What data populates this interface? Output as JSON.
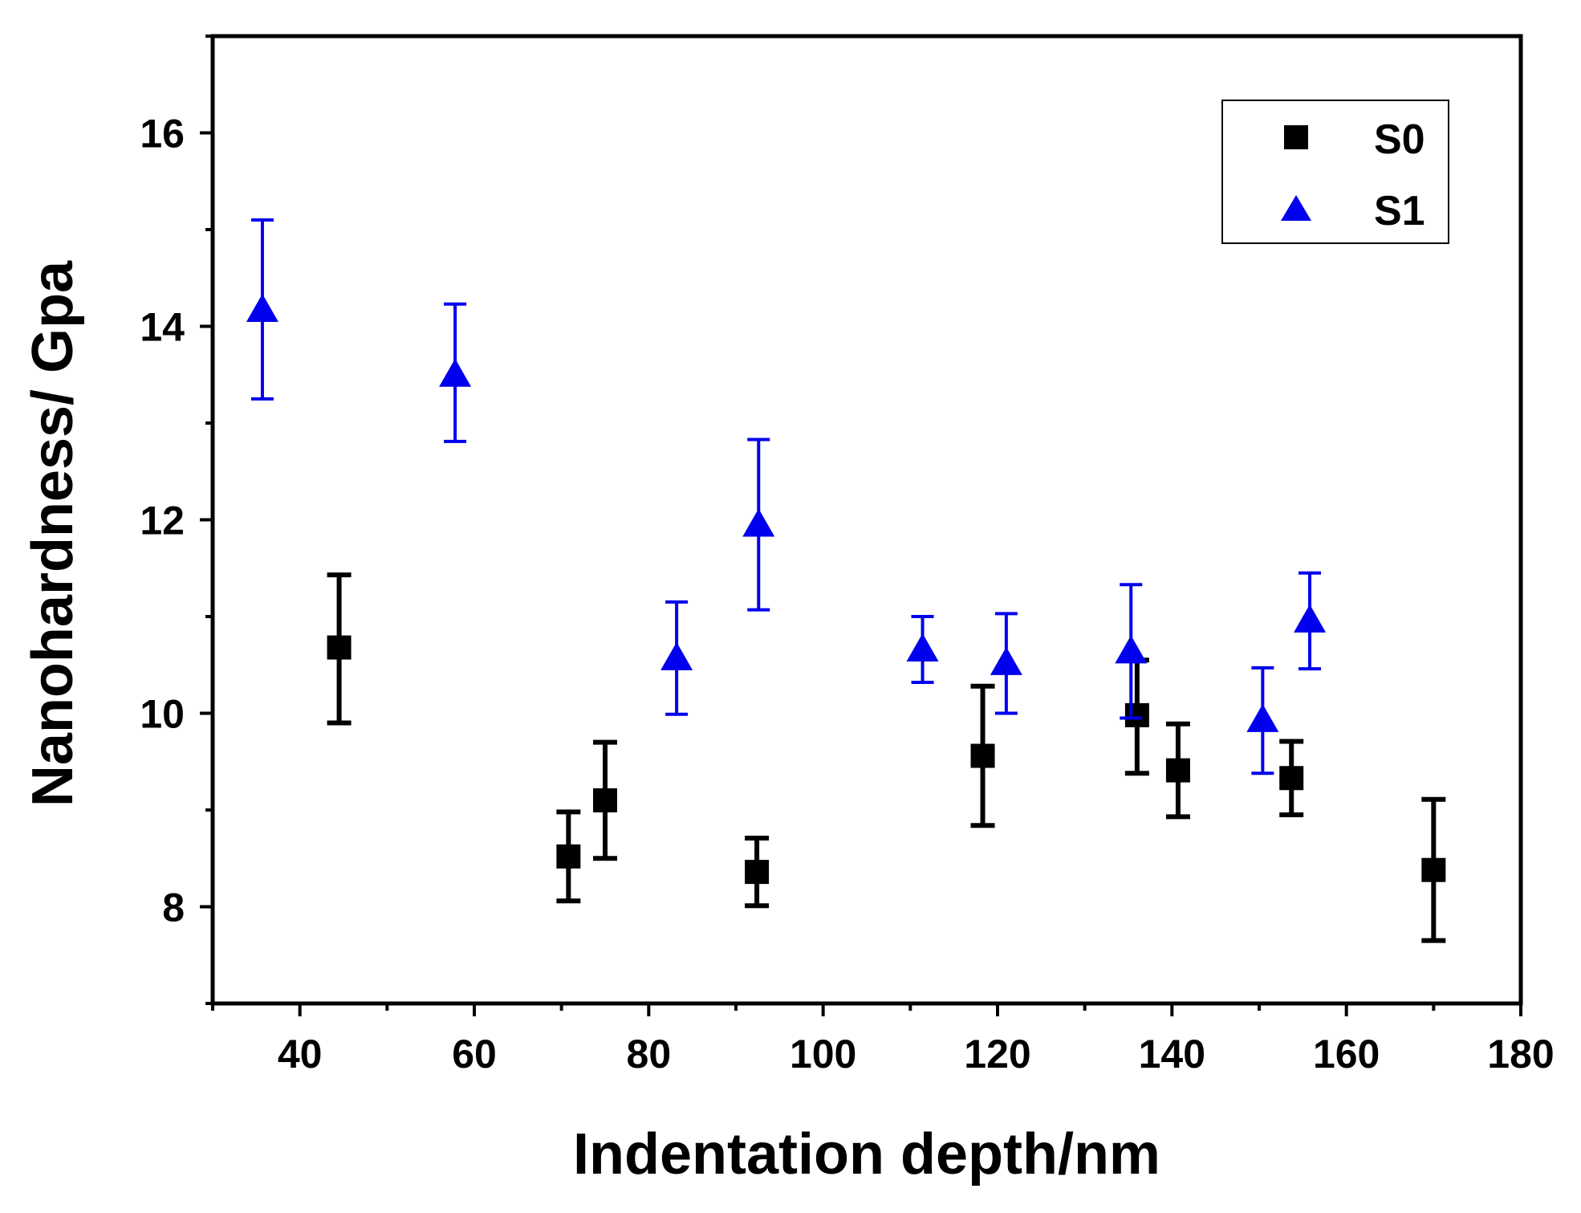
{
  "chart_data": {
    "type": "scatter",
    "title": "",
    "xlabel": "Indentation depth/nm",
    "ylabel": "Nanohardness/ Gpa",
    "xlim": [
      30,
      180
    ],
    "ylim": [
      7,
      17
    ],
    "x_major_ticks": [
      40,
      60,
      80,
      100,
      120,
      140,
      160,
      180
    ],
    "x_minor_ticks": [
      30,
      50,
      70,
      90,
      110,
      130,
      150,
      170
    ],
    "y_major_ticks": [
      8,
      10,
      12,
      14,
      16
    ],
    "y_minor_ticks": [
      7,
      9,
      11,
      13,
      15,
      17
    ],
    "grid": false,
    "legend_position": "top-right",
    "series": [
      {
        "name": "S0",
        "marker": "square",
        "color": "#000000",
        "points": [
          {
            "x": 44.5,
            "y": 10.68,
            "err_low": 9.9,
            "err_high": 11.43
          },
          {
            "x": 70.8,
            "y": 8.52,
            "err_low": 8.06,
            "err_high": 8.98
          },
          {
            "x": 75.0,
            "y": 9.1,
            "err_low": 8.5,
            "err_high": 9.7
          },
          {
            "x": 92.4,
            "y": 8.36,
            "err_low": 8.01,
            "err_high": 8.71
          },
          {
            "x": 118.3,
            "y": 9.56,
            "err_low": 8.84,
            "err_high": 10.28
          },
          {
            "x": 136.0,
            "y": 9.98,
            "err_low": 9.38,
            "err_high": 10.55
          },
          {
            "x": 140.7,
            "y": 9.41,
            "err_low": 8.93,
            "err_high": 9.89
          },
          {
            "x": 153.7,
            "y": 9.33,
            "err_low": 8.95,
            "err_high": 9.71
          },
          {
            "x": 170.0,
            "y": 8.38,
            "err_low": 7.65,
            "err_high": 9.11
          }
        ]
      },
      {
        "name": "S1",
        "marker": "triangle",
        "color": "#0000ee",
        "points": [
          {
            "x": 35.7,
            "y": 14.17,
            "err_low": 13.25,
            "err_high": 15.1
          },
          {
            "x": 57.8,
            "y": 13.5,
            "err_low": 12.81,
            "err_high": 14.23
          },
          {
            "x": 83.2,
            "y": 10.57,
            "err_low": 9.99,
            "err_high": 11.15
          },
          {
            "x": 92.6,
            "y": 11.95,
            "err_low": 11.07,
            "err_high": 12.83
          },
          {
            "x": 111.4,
            "y": 10.66,
            "err_low": 10.32,
            "err_high": 11.0
          },
          {
            "x": 121.0,
            "y": 10.52,
            "err_low": 10.0,
            "err_high": 11.03
          },
          {
            "x": 135.3,
            "y": 10.64,
            "err_low": 9.95,
            "err_high": 11.33
          },
          {
            "x": 150.4,
            "y": 9.93,
            "err_low": 9.38,
            "err_high": 10.47
          },
          {
            "x": 155.8,
            "y": 10.96,
            "err_low": 10.46,
            "err_high": 11.45
          }
        ]
      }
    ]
  }
}
